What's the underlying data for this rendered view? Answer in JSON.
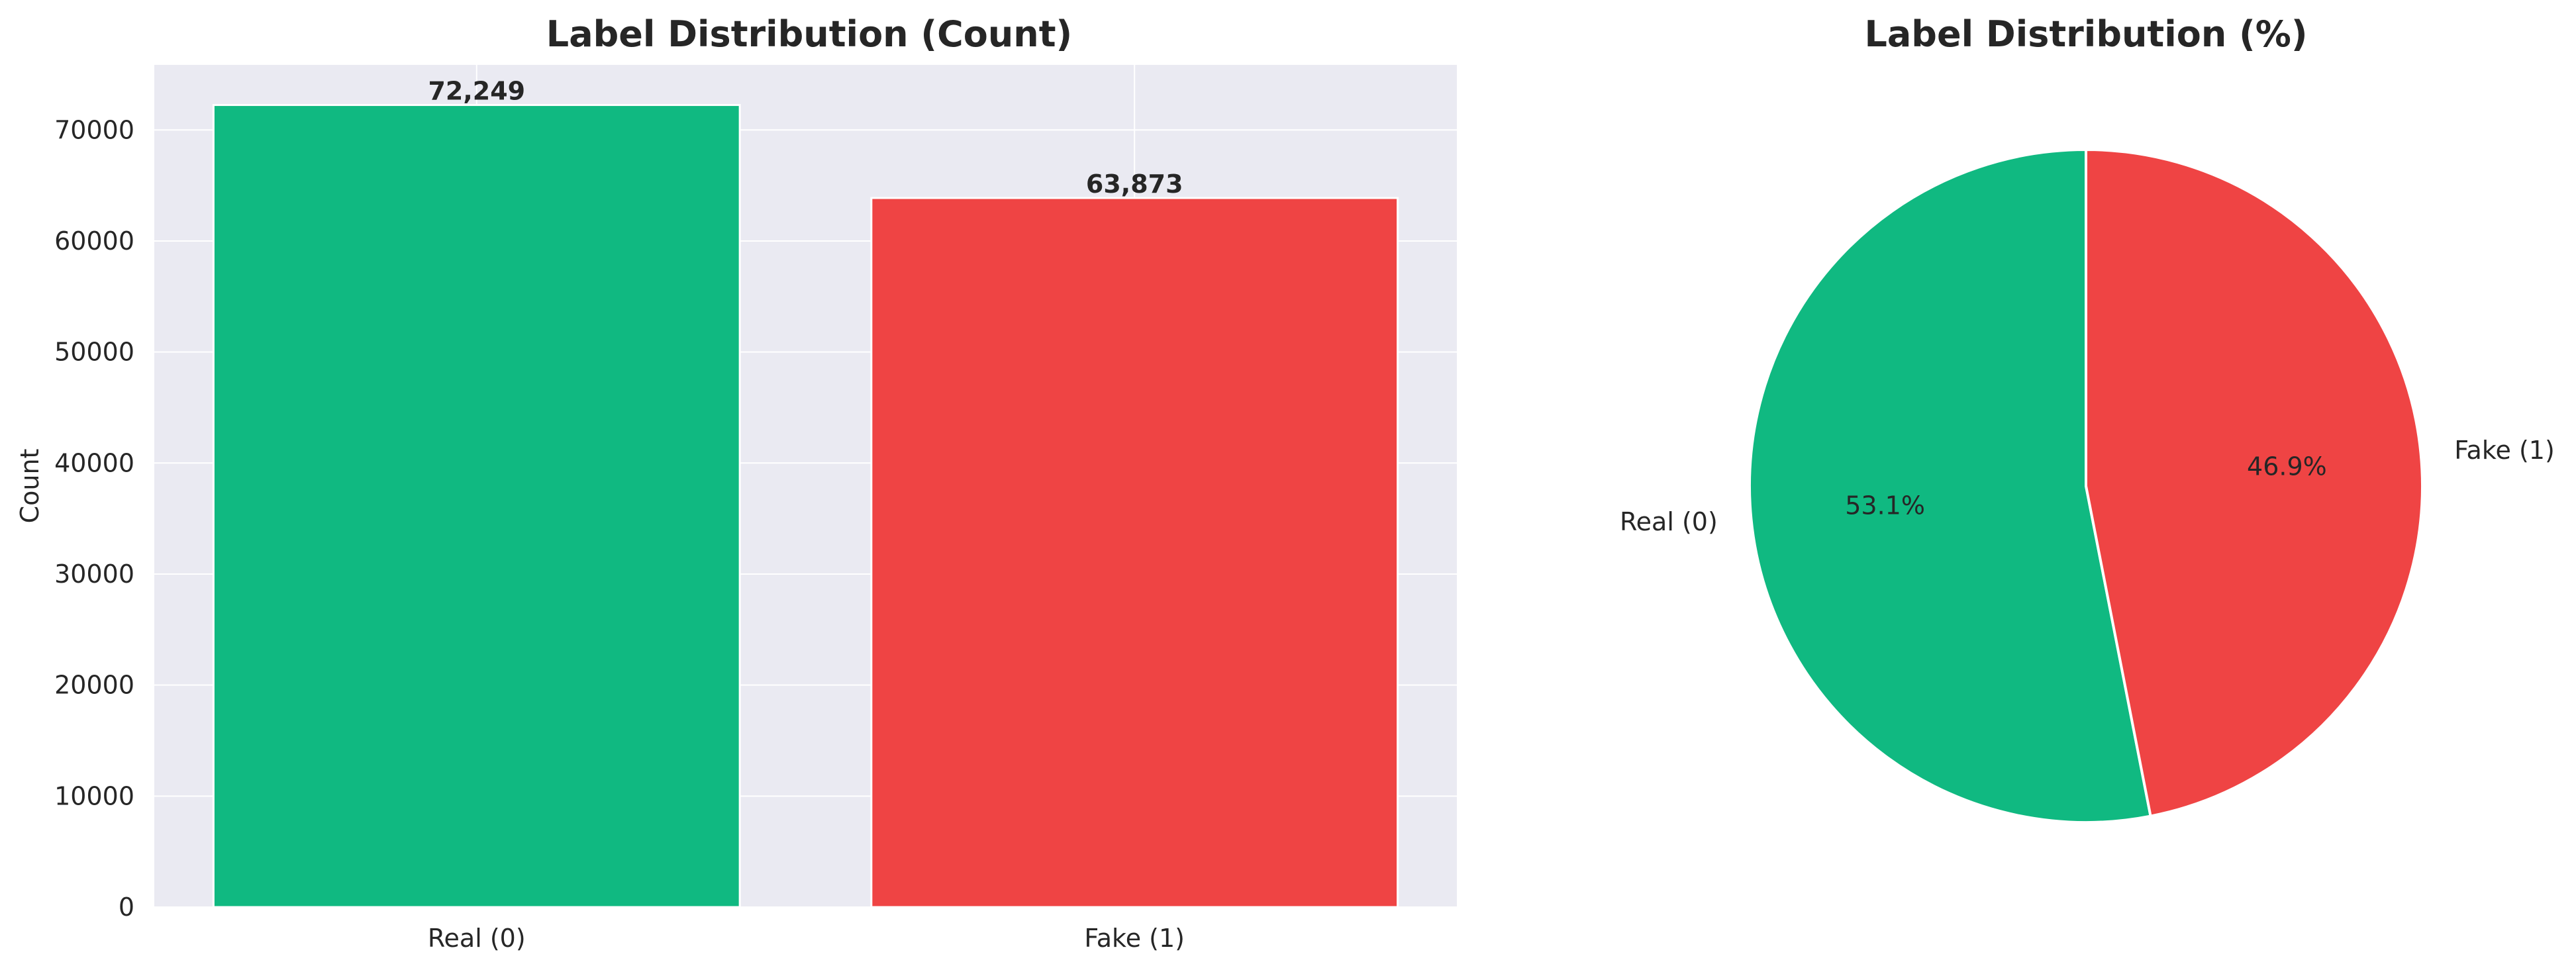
{
  "chart_data": [
    {
      "type": "bar",
      "title": "Label Distribution (Count)",
      "xlabel": "",
      "ylabel": "Count",
      "categories": [
        "Real (0)",
        "Fake (1)"
      ],
      "values": [
        72249,
        63873
      ],
      "value_labels": [
        "72,249",
        "63,873"
      ],
      "colors": [
        "#10b981",
        "#ef4444"
      ],
      "ylim": [
        0,
        75861
      ],
      "yticks": [
        0,
        10000,
        20000,
        30000,
        40000,
        50000,
        60000,
        70000
      ],
      "grid": true,
      "background": "#eaeaf2"
    },
    {
      "type": "pie",
      "title": "Label Distribution (%)",
      "categories": [
        "Real (0)",
        "Fake (1)"
      ],
      "values": [
        72249,
        63873
      ],
      "percent_labels": [
        "53.1%",
        "46.9%"
      ],
      "colors": [
        "#10b981",
        "#ef4444"
      ],
      "start_angle_deg": 90,
      "direction": "counterclockwise"
    }
  ]
}
